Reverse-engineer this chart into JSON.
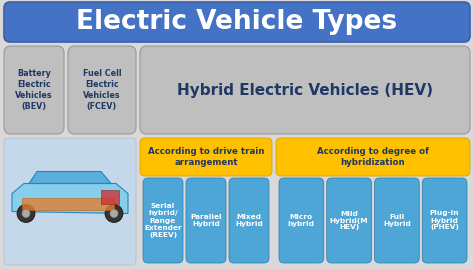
{
  "title": "Electric Vehicle Types",
  "title_bg": "#4472c4",
  "title_color": "white",
  "title_fontsize": 19,
  "bev_label": "Battery\nElectric\nVehicles\n(BEV)",
  "fcev_label": "Fuel Cell\nElectric\nVehicles\n(FCEV)",
  "hev_label": "Hybrid Electric Vehicles (HEV)",
  "drive_train_label": "According to drive train\narrangement",
  "hybridization_label": "According to degree of\nhybridization",
  "drive_train_items": [
    "Serial\nhybrid/\nRange\nExtender\n(REEV)",
    "Parallel\nHybrid",
    "Mixed\nHybrid"
  ],
  "hybridization_items": [
    "Micro\nhybrid",
    "Mild\nHybrid(M\nHEV)",
    "Full\nHybrid",
    "Plug-in\nHybrid\n(PHEV)"
  ],
  "bg_color": "#d9d9d9",
  "gray_box_color": "#bfbfbf",
  "yellow_color": "#ffc000",
  "blue_box_color": "#4da6d6",
  "label_color_dark": "#1f3864",
  "white": "white",
  "fig_w": 4.74,
  "fig_h": 2.69,
  "dpi": 100
}
